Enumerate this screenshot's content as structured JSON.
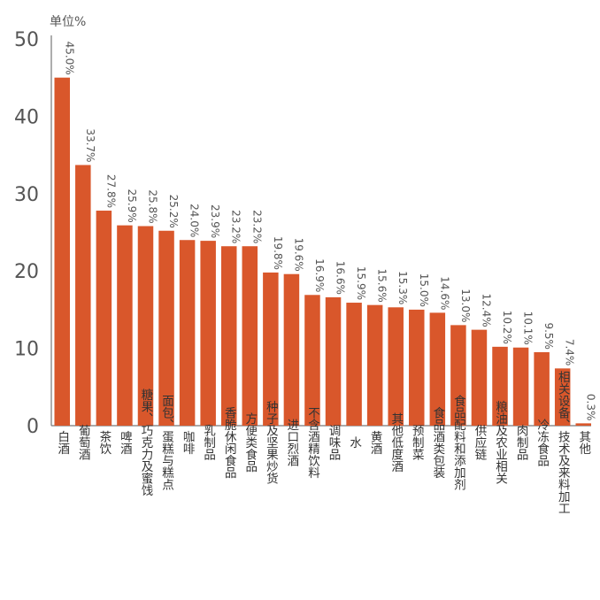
{
  "chart_data": {
    "type": "bar",
    "unit_label": "单位%",
    "categories": [
      "白酒",
      "葡萄酒",
      "茶饮",
      "啤酒",
      "糖果、巧克力及蜜饯",
      "面包、蛋糕与糕点",
      "咖啡",
      "乳制品",
      "香脆休闲食品",
      "方便类食品",
      "种子及坚果炒货",
      "进口烈酒",
      "不含酒精饮料",
      "调味品",
      "水",
      "黄酒",
      "其他低度酒",
      "预制菜",
      "食品酒类包装",
      "食品配料和添加剂",
      "供应链",
      "粮油及农业相关",
      "肉制品",
      "冷冻食品",
      "相关设备、技术及来料加工",
      "其他"
    ],
    "values": [
      45.0,
      33.7,
      27.8,
      25.9,
      25.8,
      25.2,
      24.0,
      23.9,
      23.2,
      23.2,
      19.8,
      19.6,
      16.9,
      16.6,
      15.9,
      15.6,
      15.3,
      15.0,
      14.6,
      13.0,
      12.4,
      10.2,
      10.1,
      9.5,
      7.4,
      0.3
    ],
    "value_labels": [
      "45.0%",
      "33.7%",
      "27.8%",
      "25.9%",
      "25.8%",
      "25.2%",
      "24.0%",
      "23.9%",
      "23.2%",
      "23.2%",
      "19.8%",
      "19.6%",
      "16.9%",
      "16.6%",
      "15.9%",
      "15.6%",
      "15.3%",
      "15.0%",
      "14.6%",
      "13.0%",
      "12.4%",
      "10.2%",
      "10.1%",
      "9.5%",
      "7.4%",
      "0.3%"
    ],
    "y_ticks": [
      "0",
      "10",
      "20",
      "30",
      "40",
      "50"
    ],
    "ylim": [
      0,
      50
    ],
    "grid": false,
    "bar_color": "#d9572b",
    "axis_color": "#777777"
  }
}
